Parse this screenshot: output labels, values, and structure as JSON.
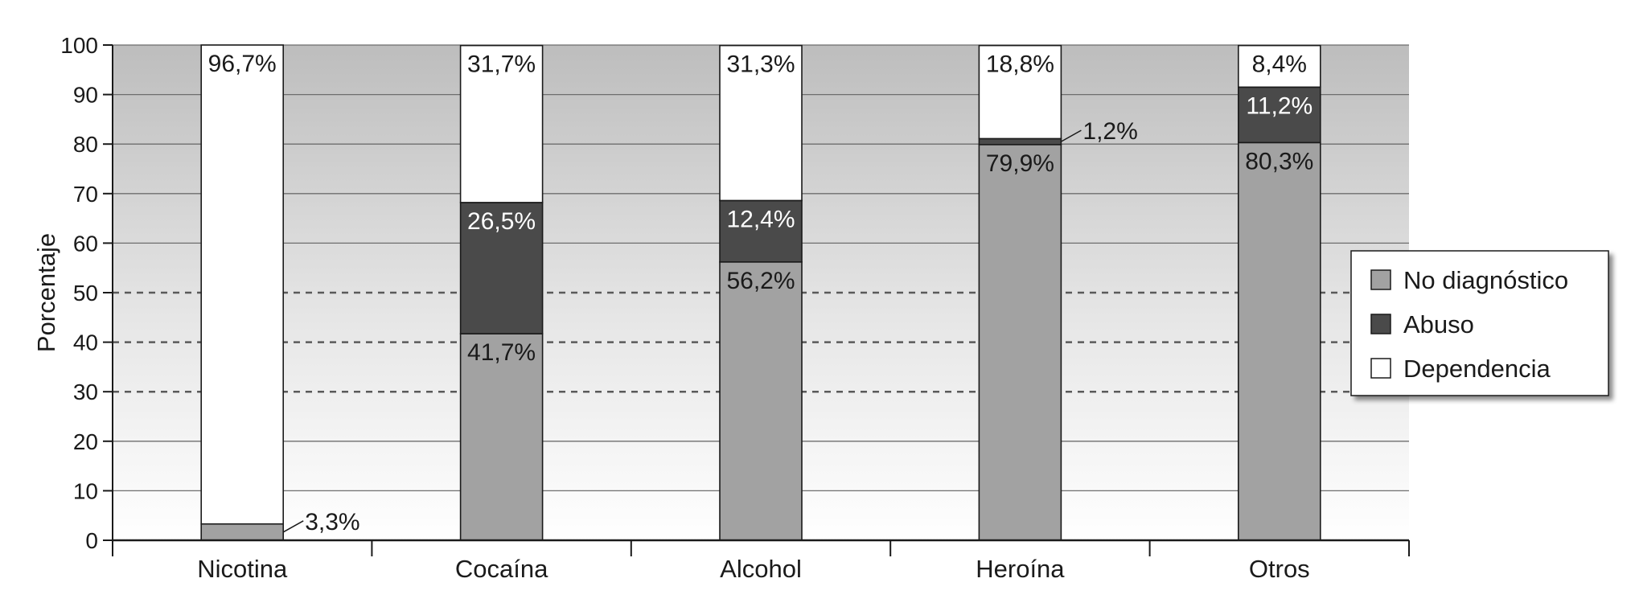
{
  "chart_data": {
    "type": "bar",
    "stacked": true,
    "title": "",
    "xlabel": "",
    "ylabel": "Porcentaje",
    "ylim": [
      0,
      100
    ],
    "yticks": [
      0,
      10,
      20,
      30,
      40,
      50,
      60,
      70,
      80,
      90,
      100
    ],
    "grid": "horizontal; solid lines, dashed at 30, 40, 50",
    "legend_position": "right",
    "categories": [
      "Nicotina",
      "Cocaína",
      "Alcohol",
      "Heroína",
      "Otros"
    ],
    "series": [
      {
        "name": "No diagnóstico",
        "color": "#a2a2a2",
        "values": [
          3.3,
          41.7,
          56.2,
          79.9,
          80.3
        ],
        "labels": [
          "3,3%",
          "41,7%",
          "56,2%",
          "79,9%",
          "80,3%"
        ]
      },
      {
        "name": "Abuso",
        "color": "#4a4a4a",
        "values": [
          0,
          26.5,
          12.4,
          1.2,
          11.2
        ],
        "labels": [
          "",
          "26,5%",
          "12,4%",
          "1,2%",
          "11,2%"
        ]
      },
      {
        "name": "Dependencia",
        "color": "#ffffff",
        "values": [
          96.7,
          31.7,
          31.3,
          18.8,
          8.4
        ],
        "labels": [
          "96,7%",
          "31,7%",
          "31,3%",
          "18,8%",
          "8,4%"
        ]
      }
    ]
  }
}
